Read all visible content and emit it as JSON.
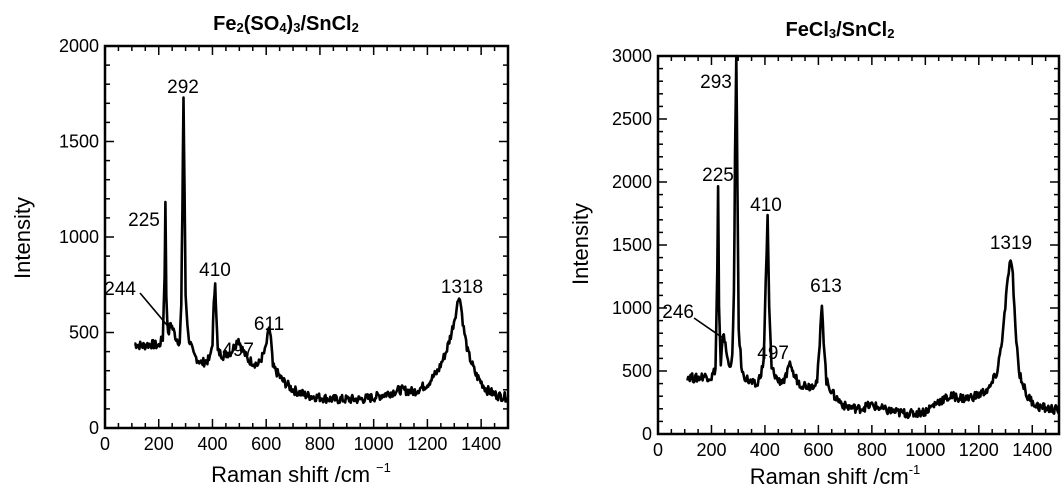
{
  "chart_data": [
    {
      "type": "line",
      "title": "Fe2(SO4)3/SnCl2",
      "title_parts": {
        "a": "Fe",
        "b": "2",
        "c": "(SO",
        "d": "4",
        "e": ")",
        "f": "3",
        "g": "/SnCl",
        "h": "2"
      },
      "xlabel": "Raman shift /cm",
      "xlabel_sup": "−1",
      "ylabel": "Intensity",
      "xlim": [
        0,
        1500
      ],
      "ylim": [
        0,
        2000
      ],
      "xticks": [
        "0",
        "200",
        "400",
        "600",
        "800",
        "1000",
        "1200",
        "1400"
      ],
      "yticks": [
        "0",
        "500",
        "1000",
        "1500",
        "2000"
      ],
      "grid": false,
      "series": [
        {
          "x": [
            110,
            140,
            170,
            200,
            215,
            222,
            225,
            228,
            235,
            244,
            252,
            265,
            278,
            284,
            288,
            292,
            296,
            300,
            310,
            330,
            360,
            390,
            400,
            405,
            410,
            415,
            420,
            440,
            470,
            490,
            497,
            505,
            530,
            570,
            595,
            605,
            611,
            617,
            625,
            660,
            700,
            750,
            800,
            850,
            900,
            950,
            1000,
            1050,
            1100,
            1150,
            1200,
            1240,
            1270,
            1290,
            1305,
            1312,
            1318,
            1325,
            1335,
            1350,
            1380,
            1420,
            1460,
            1500
          ],
          "y": [
            440,
            430,
            440,
            430,
            470,
            800,
            1170,
            700,
            480,
            550,
            520,
            470,
            450,
            640,
            1150,
            1730,
            1250,
            700,
            480,
            380,
            340,
            360,
            450,
            640,
            780,
            560,
            400,
            380,
            400,
            450,
            470,
            430,
            360,
            330,
            400,
            470,
            530,
            470,
            320,
            250,
            200,
            170,
            160,
            150,
            150,
            150,
            160,
            180,
            200,
            190,
            230,
            300,
            400,
            500,
            600,
            650,
            700,
            640,
            520,
            400,
            280,
            200,
            170,
            160
          ]
        }
      ],
      "annotations": [
        {
          "text": "292",
          "x": 292,
          "y": 1730
        },
        {
          "text": "225",
          "x": 225,
          "y": 1170
        },
        {
          "text": "244",
          "x": 244,
          "y": 550
        },
        {
          "text": "410",
          "x": 410,
          "y": 780
        },
        {
          "text": "497",
          "x": 497,
          "y": 470
        },
        {
          "text": "611",
          "x": 611,
          "y": 530
        },
        {
          "text": "1318",
          "x": 1318,
          "y": 700
        }
      ]
    },
    {
      "type": "line",
      "title": "FeCl3/SnCl2",
      "title_parts": {
        "a": "FeCl",
        "b": "3",
        "c": "/SnCl",
        "d": "2"
      },
      "xlabel": "Raman shift /cm",
      "xlabel_sup": "-1",
      "ylabel": "Intensity",
      "xlim": [
        0,
        1500
      ],
      "ylim": [
        0,
        3000
      ],
      "xticks": [
        "0",
        "200",
        "400",
        "600",
        "800",
        "1000",
        "1200",
        "1400"
      ],
      "yticks": [
        "0",
        "500",
        "1000",
        "1500",
        "2000",
        "2500",
        "3000"
      ],
      "grid": false,
      "series": [
        {
          "x": [
            110,
            140,
            170,
            200,
            215,
            222,
            225,
            228,
            235,
            242,
            246,
            252,
            265,
            278,
            284,
            288,
            293,
            297,
            302,
            315,
            340,
            370,
            395,
            403,
            410,
            416,
            425,
            450,
            475,
            490,
            497,
            505,
            530,
            570,
            595,
            605,
            613,
            620,
            630,
            660,
            700,
            750,
            800,
            850,
            900,
            950,
            1000,
            1050,
            1100,
            1150,
            1200,
            1240,
            1270,
            1290,
            1305,
            1312,
            1319,
            1327,
            1337,
            1350,
            1380,
            1420,
            1460,
            1500
          ],
          "y": [
            460,
            440,
            460,
            450,
            520,
            1300,
            1950,
            1000,
            520,
            780,
            800,
            700,
            540,
            600,
            1100,
            2200,
            3000,
            2000,
            800,
            480,
            420,
            380,
            560,
            1200,
            1720,
            1000,
            520,
            420,
            430,
            520,
            560,
            480,
            400,
            380,
            420,
            700,
            1050,
            750,
            420,
            300,
            220,
            200,
            230,
            190,
            170,
            160,
            180,
            260,
            300,
            280,
            310,
            360,
            500,
            800,
            1150,
            1300,
            1380,
            1250,
            850,
            500,
            300,
            220,
            200,
            190
          ]
        }
      ],
      "annotations": [
        {
          "text": "293",
          "x": 293,
          "y": 3000
        },
        {
          "text": "225",
          "x": 225,
          "y": 1950
        },
        {
          "text": "246",
          "x": 246,
          "y": 800
        },
        {
          "text": "410",
          "x": 410,
          "y": 1720
        },
        {
          "text": "497",
          "x": 497,
          "y": 560
        },
        {
          "text": "613",
          "x": 613,
          "y": 1050
        },
        {
          "text": "1319",
          "x": 1319,
          "y": 1380
        }
      ]
    }
  ]
}
